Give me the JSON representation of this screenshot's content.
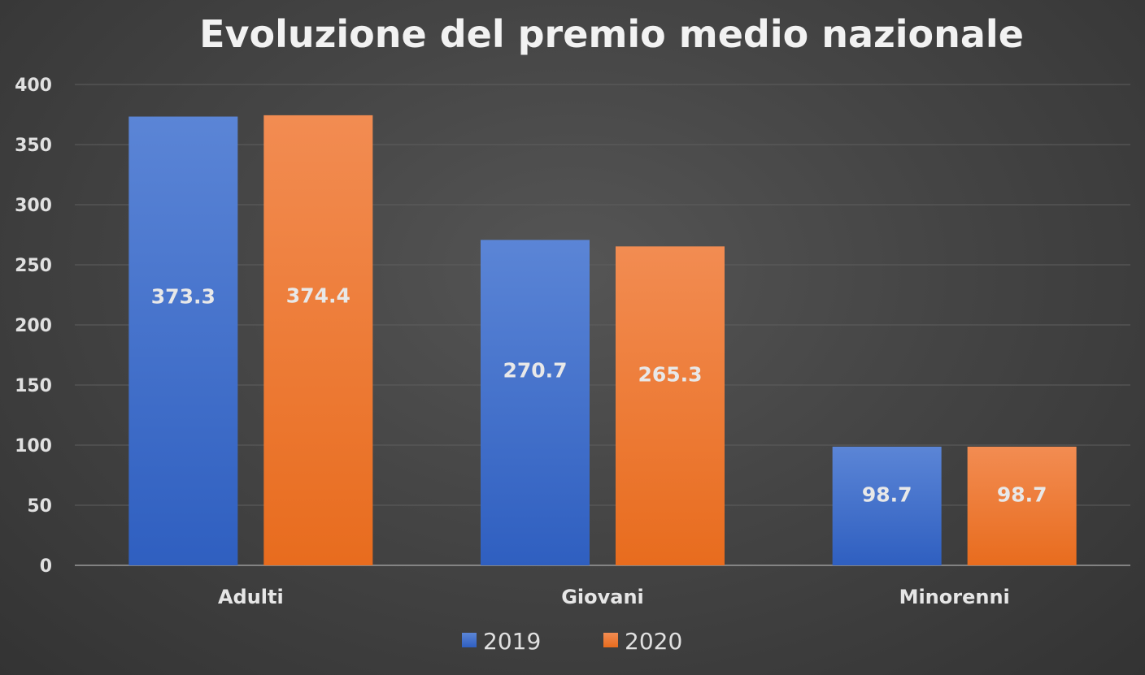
{
  "chart_data": {
    "type": "bar",
    "title": "Evoluzione del premio medio nazionale",
    "categories": [
      "Adulti",
      "Giovani",
      "Minorenni"
    ],
    "series": [
      {
        "name": "2019",
        "values": [
          373.3,
          270.7,
          98.7
        ],
        "color": "#4472c4"
      },
      {
        "name": "2020",
        "values": [
          374.4,
          265.3,
          98.7
        ],
        "color": "#ed7d31"
      }
    ],
    "data_labels": [
      [
        "373.3",
        "270.7",
        "98.7"
      ],
      [
        "374.4",
        "265.3",
        "98.7"
      ]
    ],
    "ylim": [
      0,
      400
    ],
    "yticks": [
      0,
      50,
      100,
      150,
      200,
      250,
      300,
      350,
      400
    ],
    "grid": true,
    "legend_position": "bottom"
  }
}
